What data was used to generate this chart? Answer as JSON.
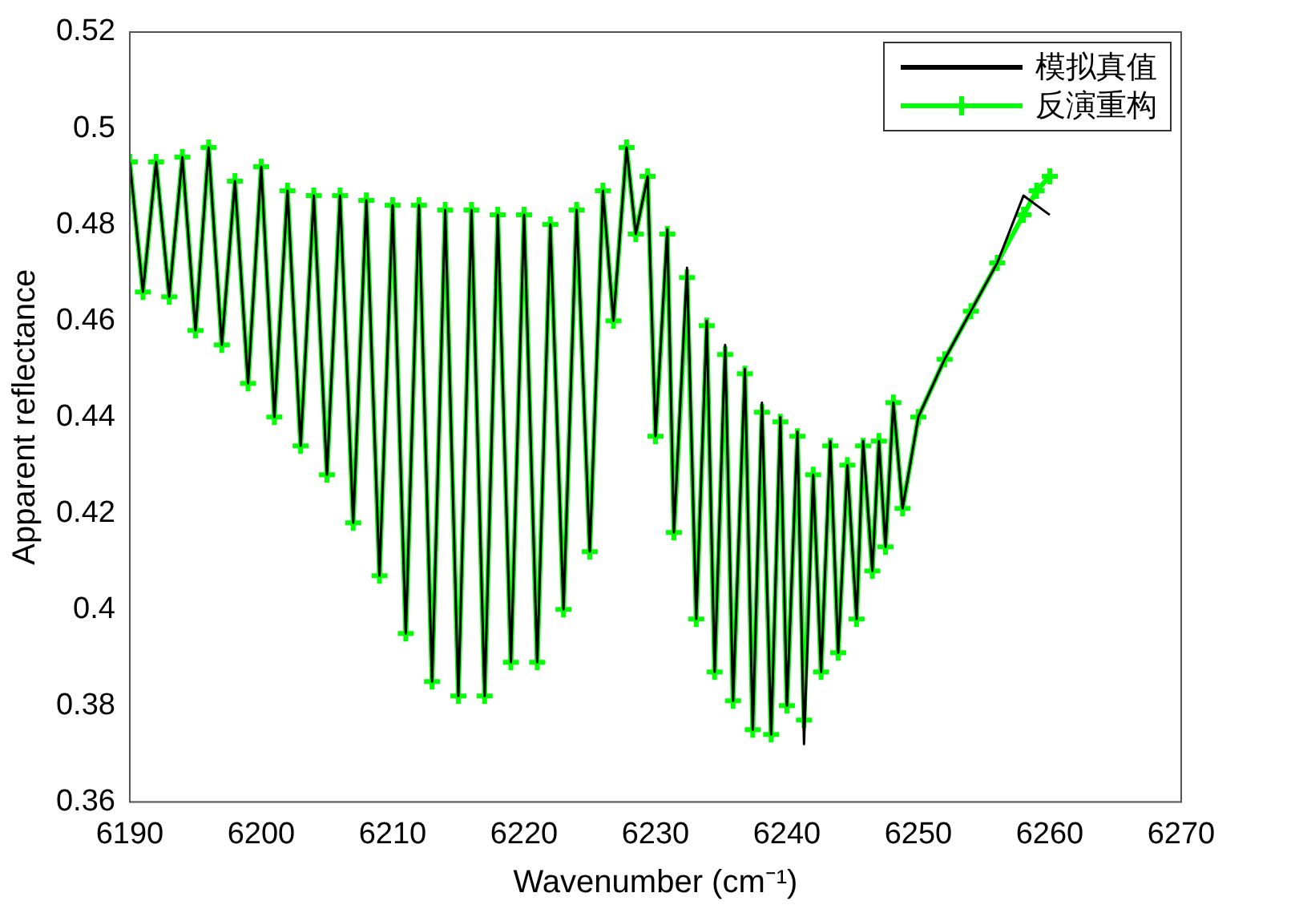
{
  "chart_data": {
    "type": "line",
    "xlabel": "Wavenumber (cm⁻¹)",
    "ylabel": "Apparent reflectance",
    "x": [
      6190,
      6191,
      6192,
      6193,
      6194,
      6195,
      6196,
      6197,
      6198,
      6199,
      6200,
      6201,
      6202,
      6203,
      6204,
      6205,
      6206,
      6207,
      6208,
      6209,
      6210,
      6211,
      6212,
      6213,
      6214,
      6215,
      6216,
      6217,
      6218,
      6219,
      6220,
      6221,
      6222,
      6223,
      6224,
      6225,
      6226,
      6226.8,
      6227.8,
      6228.5,
      6229.4,
      6230,
      6230.9,
      6231.4,
      6232.4,
      6233.1,
      6233.9,
      6234.5,
      6235.3,
      6235.9,
      6236.8,
      6237.4,
      6238.1,
      6238.8,
      6239.5,
      6240,
      6240.8,
      6241.3,
      6242,
      6242.6,
      6243.3,
      6243.9,
      6244.6,
      6245.3,
      6245.8,
      6246.5,
      6247,
      6247.5,
      6248.1,
      6248.8,
      6250,
      6252,
      6254,
      6256,
      6258,
      6259,
      6260
    ],
    "series": [
      {
        "name": "模拟真值",
        "color": "#000000",
        "marker": "none",
        "values": [
          0.493,
          0.466,
          0.493,
          0.465,
          0.494,
          0.458,
          0.496,
          0.455,
          0.489,
          0.447,
          0.492,
          0.44,
          0.487,
          0.434,
          0.486,
          0.428,
          0.486,
          0.418,
          0.485,
          0.407,
          0.484,
          0.395,
          0.484,
          0.385,
          0.483,
          0.382,
          0.483,
          0.382,
          0.482,
          0.389,
          0.482,
          0.389,
          0.48,
          0.4,
          0.483,
          0.412,
          0.487,
          0.46,
          0.496,
          0.478,
          0.49,
          0.436,
          0.479,
          0.416,
          0.471,
          0.398,
          0.46,
          0.387,
          0.455,
          0.381,
          0.45,
          0.375,
          0.443,
          0.374,
          0.44,
          0.38,
          0.437,
          0.372,
          0.428,
          0.387,
          0.435,
          0.391,
          0.43,
          0.398,
          0.435,
          0.408,
          0.435,
          0.413,
          0.443,
          0.421,
          0.44,
          0.452,
          0.462,
          0.472,
          0.486,
          0.484,
          0.482
        ]
      },
      {
        "name": "反演重构",
        "color": "#00ff00",
        "marker": "cross",
        "values": [
          0.493,
          0.466,
          0.493,
          0.465,
          0.494,
          0.458,
          0.496,
          0.455,
          0.489,
          0.447,
          0.492,
          0.44,
          0.487,
          0.434,
          0.486,
          0.428,
          0.486,
          0.418,
          0.485,
          0.407,
          0.484,
          0.395,
          0.484,
          0.385,
          0.483,
          0.382,
          0.483,
          0.382,
          0.482,
          0.389,
          0.482,
          0.389,
          0.48,
          0.4,
          0.483,
          0.412,
          0.487,
          0.46,
          0.496,
          0.478,
          0.49,
          0.436,
          0.478,
          0.416,
          0.469,
          0.398,
          0.459,
          0.387,
          0.453,
          0.381,
          0.449,
          0.375,
          0.441,
          0.374,
          0.439,
          0.38,
          0.436,
          0.377,
          0.428,
          0.387,
          0.434,
          0.391,
          0.43,
          0.398,
          0.434,
          0.408,
          0.435,
          0.413,
          0.443,
          0.421,
          0.44,
          0.452,
          0.462,
          0.472,
          0.482,
          0.487,
          0.49
        ]
      }
    ],
    "xlim": [
      6190,
      6270
    ],
    "xticks": [
      6190,
      6200,
      6210,
      6220,
      6230,
      6240,
      6250,
      6260,
      6270
    ],
    "ylim": [
      0.36,
      0.52
    ],
    "yticks": [
      0.36,
      0.38,
      0.4,
      0.42,
      0.44,
      0.46,
      0.48,
      0.5,
      0.52
    ],
    "grid": false,
    "legend": "top right",
    "line_style": "solid"
  }
}
